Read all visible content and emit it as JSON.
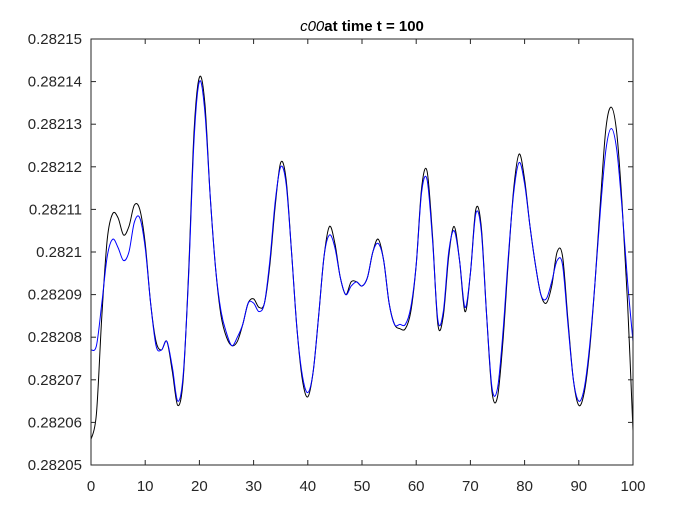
{
  "chart_data": {
    "type": "line",
    "title": {
      "variable": "c00",
      "rest": "at time t = 100"
    },
    "xlabel": "",
    "ylabel": "",
    "xlim": [
      0,
      100
    ],
    "ylim": [
      0.28205,
      0.28215
    ],
    "xticks": [
      0,
      10,
      20,
      30,
      40,
      50,
      60,
      70,
      80,
      90,
      100
    ],
    "xtick_labels": [
      "0",
      "10",
      "20",
      "30",
      "40",
      "50",
      "60",
      "70",
      "80",
      "90",
      "100"
    ],
    "yticks": [
      0.28205,
      0.28206,
      0.28207,
      0.28208,
      0.28209,
      0.2821,
      0.28211,
      0.28212,
      0.28213,
      0.28214,
      0.28215
    ],
    "ytick_labels": [
      "0.28205",
      "0.28206",
      "0.28207",
      "0.28208",
      "0.28209",
      "0.2821",
      "0.28211",
      "0.28212",
      "0.28213",
      "0.28214",
      "0.28215"
    ],
    "grid": false,
    "legend": "none",
    "series": [
      {
        "color": "#000000",
        "x": [
          0,
          1,
          2,
          3,
          4,
          5,
          6,
          7,
          8,
          9,
          10,
          11,
          12,
          13,
          14,
          15,
          16,
          17,
          18,
          19,
          20,
          21,
          22,
          23,
          24,
          25,
          26,
          27,
          28,
          29,
          30,
          31,
          32,
          33,
          34,
          35,
          36,
          37,
          38,
          39,
          40,
          41,
          42,
          43,
          44,
          45,
          46,
          47,
          48,
          49,
          50,
          51,
          52,
          53,
          54,
          55,
          56,
          57,
          58,
          59,
          60,
          61,
          62,
          63,
          64,
          65,
          66,
          67,
          68,
          69,
          70,
          71,
          72,
          73,
          74,
          75,
          76,
          77,
          78,
          79,
          80,
          81,
          82,
          83,
          84,
          85,
          86,
          87,
          88,
          89,
          90,
          91,
          92,
          93,
          94,
          95,
          96,
          97,
          98,
          99,
          100
        ],
        "y": [
          0.282056,
          0.282062,
          0.282085,
          0.282103,
          0.282109,
          0.282108,
          0.282104,
          0.282106,
          0.282111,
          0.28211,
          0.282102,
          0.282088,
          0.282079,
          0.282077,
          0.282079,
          0.282072,
          0.282064,
          0.28207,
          0.282095,
          0.282128,
          0.282141,
          0.282135,
          0.282113,
          0.282096,
          0.282085,
          0.28208,
          0.282078,
          0.282079,
          0.282083,
          0.282088,
          0.282089,
          0.282087,
          0.282088,
          0.282097,
          0.282111,
          0.282121,
          0.282117,
          0.2821,
          0.282082,
          0.28207,
          0.282066,
          0.282072,
          0.282085,
          0.282099,
          0.282106,
          0.282102,
          0.282094,
          0.28209,
          0.282093,
          0.282093,
          0.282092,
          0.282094,
          0.2821,
          0.282103,
          0.282098,
          0.282088,
          0.282083,
          0.282082,
          0.282082,
          0.282086,
          0.282097,
          0.282115,
          0.282119,
          0.282104,
          0.282083,
          0.282085,
          0.282099,
          0.282106,
          0.282098,
          0.282086,
          0.282095,
          0.28211,
          0.282106,
          0.282085,
          0.282067,
          0.282066,
          0.282079,
          0.282098,
          0.282115,
          0.282123,
          0.282117,
          0.282106,
          0.282097,
          0.28209,
          0.282088,
          0.282092,
          0.2821,
          0.282099,
          0.282084,
          0.28207,
          0.282064,
          0.282067,
          0.282077,
          0.282093,
          0.282112,
          0.282129,
          0.282134,
          0.282128,
          0.282111,
          0.282088,
          0.282058
        ]
      },
      {
        "color": "#0000ff",
        "x": [
          0,
          1,
          2,
          3,
          4,
          5,
          6,
          7,
          8,
          9,
          10,
          11,
          12,
          13,
          14,
          15,
          16,
          17,
          18,
          19,
          20,
          21,
          22,
          23,
          24,
          25,
          26,
          27,
          28,
          29,
          30,
          31,
          32,
          33,
          34,
          35,
          36,
          37,
          38,
          39,
          40,
          41,
          42,
          43,
          44,
          45,
          46,
          47,
          48,
          49,
          50,
          51,
          52,
          53,
          54,
          55,
          56,
          57,
          58,
          59,
          60,
          61,
          62,
          63,
          64,
          65,
          66,
          67,
          68,
          69,
          70,
          71,
          72,
          73,
          74,
          75,
          76,
          77,
          78,
          79,
          80,
          81,
          82,
          83,
          84,
          85,
          86,
          87,
          88,
          89,
          90,
          91,
          92,
          93,
          94,
          95,
          96,
          97,
          98,
          99,
          100
        ],
        "y": [
          0.282077,
          0.282078,
          0.282088,
          0.282099,
          0.282103,
          0.282101,
          0.282098,
          0.2821,
          0.282107,
          0.282108,
          0.282101,
          0.282088,
          0.282078,
          0.282077,
          0.282079,
          0.282073,
          0.282065,
          0.282071,
          0.282094,
          0.282126,
          0.28214,
          0.282133,
          0.282113,
          0.282096,
          0.282086,
          0.282081,
          0.282078,
          0.28208,
          0.282083,
          0.282088,
          0.282088,
          0.282086,
          0.282088,
          0.282098,
          0.282112,
          0.28212,
          0.282116,
          0.2821,
          0.282082,
          0.282071,
          0.282067,
          0.282072,
          0.282085,
          0.282099,
          0.282104,
          0.282101,
          0.282094,
          0.28209,
          0.282092,
          0.282093,
          0.282092,
          0.282094,
          0.2821,
          0.282102,
          0.282098,
          0.282088,
          0.282083,
          0.282083,
          0.282083,
          0.282087,
          0.282097,
          0.282114,
          0.282117,
          0.282103,
          0.282084,
          0.282086,
          0.2821,
          0.282105,
          0.282098,
          0.282087,
          0.282095,
          0.282109,
          0.282105,
          0.282085,
          0.282068,
          0.282068,
          0.282081,
          0.282099,
          0.282114,
          0.282121,
          0.282116,
          0.282106,
          0.282097,
          0.28209,
          0.282089,
          0.282093,
          0.282098,
          0.282097,
          0.282083,
          0.28207,
          0.282065,
          0.282068,
          0.282078,
          0.282093,
          0.28211,
          0.282124,
          0.282129,
          0.282124,
          0.28211,
          0.282093,
          0.282079
        ]
      }
    ]
  }
}
